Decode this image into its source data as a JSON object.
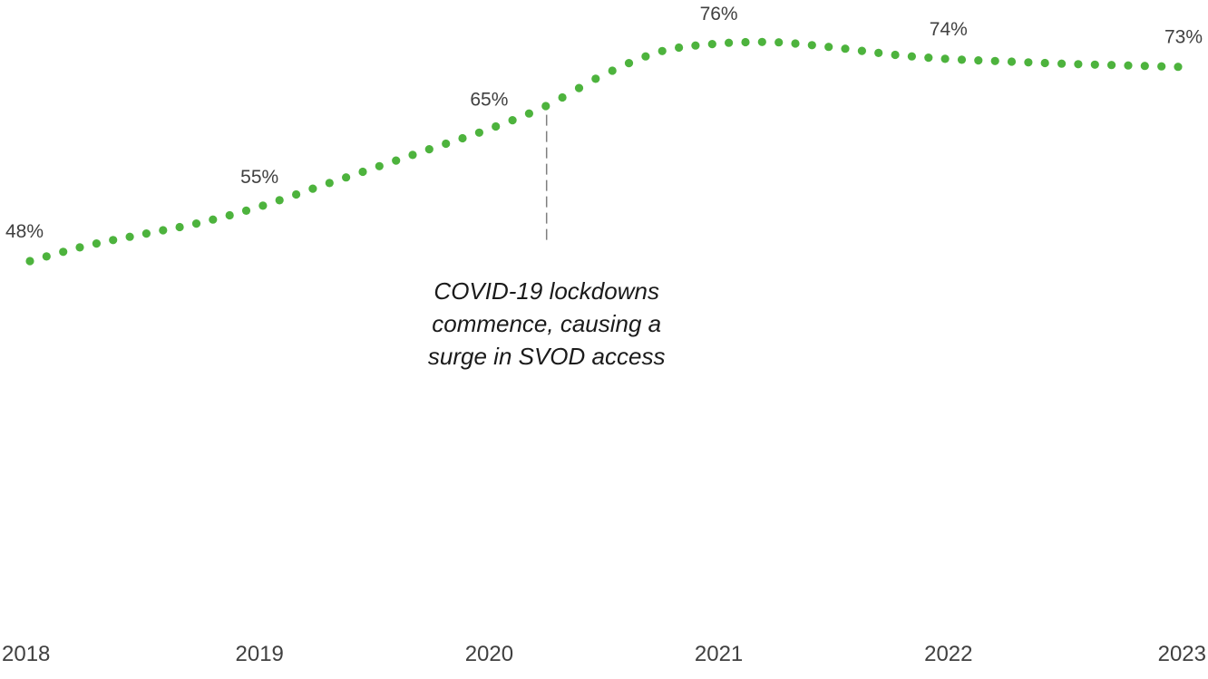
{
  "chart_data": {
    "type": "line",
    "title": "",
    "xlabel": "",
    "ylabel": "",
    "x_ticks": [
      "2018",
      "2019",
      "2020",
      "2021",
      "2022",
      "2023"
    ],
    "x_range": [
      2018,
      2023
    ],
    "series": [
      {
        "style": "dotted",
        "color": "#4db33d",
        "points": [
          {
            "x": 2018.0,
            "y": 48,
            "label": "48%"
          },
          {
            "x": 2018.25,
            "y": 50
          },
          {
            "x": 2018.5,
            "y": 51.5
          },
          {
            "x": 2018.75,
            "y": 53
          },
          {
            "x": 2019.0,
            "y": 55,
            "label": "55%"
          },
          {
            "x": 2019.25,
            "y": 57.5
          },
          {
            "x": 2019.5,
            "y": 60
          },
          {
            "x": 2019.75,
            "y": 62.5
          },
          {
            "x": 2020.0,
            "y": 65,
            "label": "65%"
          },
          {
            "x": 2020.25,
            "y": 68
          },
          {
            "x": 2020.5,
            "y": 72
          },
          {
            "x": 2020.75,
            "y": 75
          },
          {
            "x": 2021.0,
            "y": 76,
            "label": "76%"
          },
          {
            "x": 2021.2,
            "y": 76.2
          },
          {
            "x": 2021.5,
            "y": 75.5
          },
          {
            "x": 2021.75,
            "y": 74.6
          },
          {
            "x": 2022.0,
            "y": 74,
            "label": "74%"
          },
          {
            "x": 2022.25,
            "y": 73.7
          },
          {
            "x": 2022.5,
            "y": 73.4
          },
          {
            "x": 2022.75,
            "y": 73.2
          },
          {
            "x": 2023.0,
            "y": 73,
            "label": "73%"
          }
        ]
      }
    ],
    "annotation": {
      "x": 2020.25,
      "lines": [
        "COVID-19 lockdowns",
        "commence, causing a",
        "surge in SVOD access"
      ]
    },
    "grid": false,
    "legend": "none"
  }
}
